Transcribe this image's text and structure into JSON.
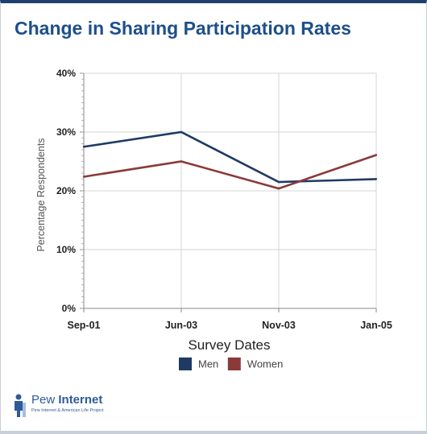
{
  "page": {
    "title": "Change in Sharing Participation Rates"
  },
  "chart_data": {
    "type": "line",
    "title": "Change in Sharing Participation Rates",
    "xlabel": "Survey Dates",
    "ylabel": "Percentage Respondents",
    "categories": [
      "Sep-01",
      "Jun-03",
      "Nov-03",
      "Jan-05"
    ],
    "y_ticks": [
      "0%",
      "10%",
      "20%",
      "30%",
      "40%"
    ],
    "ylim": [
      0,
      40
    ],
    "grid": true,
    "legend_position": "bottom",
    "series": [
      {
        "name": "Men",
        "values": [
          27.5,
          30,
          21.5,
          22
        ],
        "color": "#1f3b63"
      },
      {
        "name": "Women",
        "values": [
          22.4,
          25,
          20.4,
          26.1
        ],
        "color": "#8b3a3a"
      }
    ]
  },
  "logo": {
    "word_light": "Pew",
    "word_bold": "Internet",
    "tagline": "Pew Internet & American Life Project"
  },
  "colors": {
    "title": "#1d4f8a",
    "frame_top": "#1f3f6e"
  }
}
